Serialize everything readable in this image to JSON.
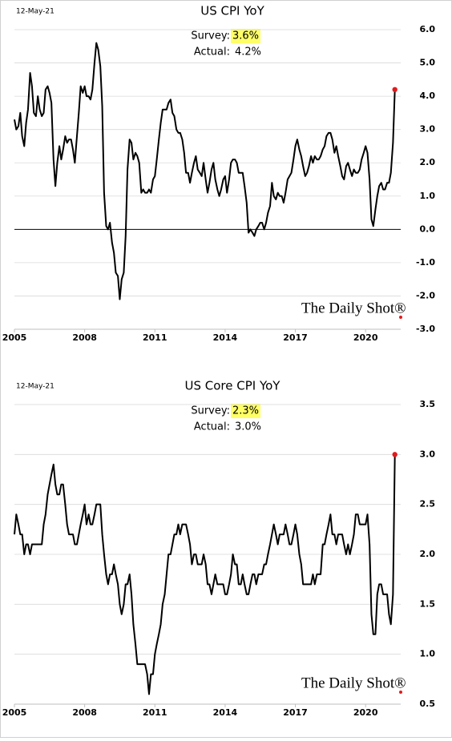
{
  "chart_data": [
    {
      "type": "line",
      "title": "US CPI YoY",
      "date": "12-May-21",
      "annotations": {
        "survey_label": "Survey:",
        "survey": "3.6%",
        "actual_label": "Actual:",
        "actual": "4.2%"
      },
      "watermark": "The Daily Shot®",
      "xlim": [
        2005,
        2021.5
      ],
      "xticks": [
        2005,
        2008,
        2011,
        2014,
        2017,
        2020
      ],
      "ylim": [
        -3,
        6
      ],
      "yticks": [
        {
          "value": 6,
          "label": "6.0"
        },
        {
          "value": 5,
          "label": "5.0"
        },
        {
          "value": 4,
          "label": "4.0"
        },
        {
          "value": 3,
          "label": "3.0"
        },
        {
          "value": 2,
          "label": "2.0"
        },
        {
          "value": 1,
          "label": "1.0"
        },
        {
          "value": 0,
          "label": "0.0"
        },
        {
          "value": -1,
          "label": "-1.0"
        },
        {
          "value": -2,
          "label": "-2.0"
        },
        {
          "value": -3,
          "label": "-3.0"
        }
      ],
      "grid": true,
      "zero_line": true,
      "color": "#000000",
      "end_marker_color": "#e31a1c",
      "highlight_color": "#ffff66",
      "x": [
        2005.0,
        2005.08,
        2005.17,
        2005.25,
        2005.33,
        2005.42,
        2005.5,
        2005.58,
        2005.67,
        2005.75,
        2005.83,
        2005.92,
        2006.0,
        2006.08,
        2006.17,
        2006.25,
        2006.33,
        2006.42,
        2006.5,
        2006.58,
        2006.67,
        2006.75,
        2006.83,
        2006.92,
        2007.0,
        2007.08,
        2007.17,
        2007.25,
        2007.33,
        2007.42,
        2007.5,
        2007.58,
        2007.67,
        2007.75,
        2007.83,
        2007.92,
        2008.0,
        2008.08,
        2008.17,
        2008.25,
        2008.33,
        2008.42,
        2008.5,
        2008.58,
        2008.67,
        2008.75,
        2008.83,
        2008.92,
        2009.0,
        2009.08,
        2009.17,
        2009.25,
        2009.33,
        2009.42,
        2009.5,
        2009.58,
        2009.67,
        2009.75,
        2009.83,
        2009.92,
        2010.0,
        2010.08,
        2010.17,
        2010.25,
        2010.33,
        2010.42,
        2010.5,
        2010.58,
        2010.67,
        2010.75,
        2010.83,
        2010.92,
        2011.0,
        2011.08,
        2011.17,
        2011.25,
        2011.33,
        2011.42,
        2011.5,
        2011.58,
        2011.67,
        2011.75,
        2011.83,
        2011.92,
        2012.0,
        2012.08,
        2012.17,
        2012.25,
        2012.33,
        2012.42,
        2012.5,
        2012.58,
        2012.67,
        2012.75,
        2012.83,
        2012.92,
        2013.0,
        2013.08,
        2013.17,
        2013.25,
        2013.33,
        2013.42,
        2013.5,
        2013.58,
        2013.67,
        2013.75,
        2013.83,
        2013.92,
        2014.0,
        2014.08,
        2014.17,
        2014.25,
        2014.33,
        2014.42,
        2014.5,
        2014.58,
        2014.67,
        2014.75,
        2014.83,
        2014.92,
        2015.0,
        2015.08,
        2015.17,
        2015.25,
        2015.33,
        2015.42,
        2015.5,
        2015.58,
        2015.67,
        2015.75,
        2015.83,
        2015.92,
        2016.0,
        2016.08,
        2016.17,
        2016.25,
        2016.33,
        2016.42,
        2016.5,
        2016.58,
        2016.67,
        2016.75,
        2016.83,
        2016.92,
        2017.0,
        2017.08,
        2017.17,
        2017.25,
        2017.33,
        2017.42,
        2017.5,
        2017.58,
        2017.67,
        2017.75,
        2017.83,
        2017.92,
        2018.0,
        2018.08,
        2018.17,
        2018.25,
        2018.33,
        2018.42,
        2018.5,
        2018.58,
        2018.67,
        2018.75,
        2018.83,
        2018.92,
        2019.0,
        2019.08,
        2019.17,
        2019.25,
        2019.33,
        2019.42,
        2019.5,
        2019.58,
        2019.67,
        2019.75,
        2019.83,
        2019.92,
        2020.0,
        2020.08,
        2020.17,
        2020.25,
        2020.33,
        2020.42,
        2020.5,
        2020.58,
        2020.67,
        2020.75,
        2020.83,
        2020.92,
        2021.0,
        2021.08,
        2021.17,
        2021.25
      ],
      "values": [
        3.3,
        3.0,
        3.1,
        3.5,
        2.8,
        2.5,
        3.2,
        3.6,
        4.7,
        4.3,
        3.5,
        3.4,
        4.0,
        3.6,
        3.4,
        3.5,
        4.2,
        4.3,
        4.1,
        3.8,
        2.1,
        1.3,
        2.0,
        2.5,
        2.1,
        2.4,
        2.8,
        2.6,
        2.7,
        2.7,
        2.4,
        2.0,
        2.8,
        3.5,
        4.3,
        4.1,
        4.3,
        4.0,
        4.0,
        3.9,
        4.2,
        5.0,
        5.6,
        5.4,
        4.9,
        3.7,
        1.1,
        0.1,
        0.0,
        0.2,
        -0.4,
        -0.7,
        -1.3,
        -1.4,
        -2.1,
        -1.5,
        -1.3,
        -0.2,
        1.8,
        2.7,
        2.6,
        2.1,
        2.3,
        2.2,
        2.0,
        1.1,
        1.2,
        1.1,
        1.1,
        1.2,
        1.1,
        1.5,
        1.6,
        2.1,
        2.7,
        3.2,
        3.6,
        3.6,
        3.6,
        3.8,
        3.9,
        3.5,
        3.4,
        3.0,
        2.9,
        2.9,
        2.7,
        2.3,
        1.7,
        1.7,
        1.4,
        1.7,
        2.0,
        2.2,
        1.8,
        1.7,
        1.6,
        2.0,
        1.5,
        1.1,
        1.4,
        1.8,
        2.0,
        1.5,
        1.2,
        1.0,
        1.2,
        1.5,
        1.6,
        1.1,
        1.5,
        2.0,
        2.1,
        2.1,
        2.0,
        1.7,
        1.7,
        1.7,
        1.3,
        0.8,
        -0.1,
        0.0,
        -0.1,
        -0.2,
        0.0,
        0.1,
        0.2,
        0.2,
        0.0,
        0.2,
        0.5,
        0.7,
        1.4,
        1.0,
        0.9,
        1.1,
        1.0,
        1.0,
        0.8,
        1.1,
        1.5,
        1.6,
        1.7,
        2.1,
        2.5,
        2.7,
        2.4,
        2.2,
        1.9,
        1.6,
        1.7,
        1.9,
        2.2,
        2.0,
        2.2,
        2.1,
        2.1,
        2.2,
        2.4,
        2.5,
        2.8,
        2.9,
        2.9,
        2.7,
        2.3,
        2.5,
        2.2,
        1.9,
        1.6,
        1.5,
        1.9,
        2.0,
        1.8,
        1.6,
        1.8,
        1.7,
        1.7,
        1.8,
        2.1,
        2.3,
        2.5,
        2.3,
        1.5,
        0.3,
        0.1,
        0.6,
        1.0,
        1.3,
        1.4,
        1.2,
        1.2,
        1.4,
        1.4,
        1.7,
        2.6,
        4.2
      ]
    },
    {
      "type": "line",
      "title": "US Core CPI YoY",
      "date": "12-May-21",
      "annotations": {
        "survey_label": "Survey:",
        "survey": "2.3%",
        "actual_label": "Actual:",
        "actual": "3.0%"
      },
      "watermark": "The Daily Shot®",
      "xlim": [
        2005,
        2021.5
      ],
      "xticks": [
        2005,
        2008,
        2011,
        2014,
        2017,
        2020
      ],
      "ylim": [
        0.5,
        3.5
      ],
      "yticks": [
        3.5,
        {
          "value": 3,
          "label": "3.0"
        },
        2.5,
        {
          "value": 2,
          "label": "2.0"
        },
        1.5,
        {
          "value": 1,
          "label": "1.0"
        },
        0.5
      ],
      "grid": true,
      "zero_line": false,
      "color": "#000000",
      "end_marker_color": "#e31a1c",
      "highlight_color": "#ffff66",
      "x": [
        2005.0,
        2005.08,
        2005.17,
        2005.25,
        2005.33,
        2005.42,
        2005.5,
        2005.58,
        2005.67,
        2005.75,
        2005.83,
        2005.92,
        2006.0,
        2006.08,
        2006.17,
        2006.25,
        2006.33,
        2006.42,
        2006.5,
        2006.58,
        2006.67,
        2006.75,
        2006.83,
        2006.92,
        2007.0,
        2007.08,
        2007.17,
        2007.25,
        2007.33,
        2007.42,
        2007.5,
        2007.58,
        2007.67,
        2007.75,
        2007.83,
        2007.92,
        2008.0,
        2008.08,
        2008.17,
        2008.25,
        2008.33,
        2008.42,
        2008.5,
        2008.58,
        2008.67,
        2008.75,
        2008.83,
        2008.92,
        2009.0,
        2009.08,
        2009.17,
        2009.25,
        2009.33,
        2009.42,
        2009.5,
        2009.58,
        2009.67,
        2009.75,
        2009.83,
        2009.92,
        2010.0,
        2010.08,
        2010.17,
        2010.25,
        2010.33,
        2010.42,
        2010.5,
        2010.58,
        2010.67,
        2010.75,
        2010.83,
        2010.92,
        2011.0,
        2011.08,
        2011.17,
        2011.25,
        2011.33,
        2011.42,
        2011.5,
        2011.58,
        2011.67,
        2011.75,
        2011.83,
        2011.92,
        2012.0,
        2012.08,
        2012.17,
        2012.25,
        2012.33,
        2012.42,
        2012.5,
        2012.58,
        2012.67,
        2012.75,
        2012.83,
        2012.92,
        2013.0,
        2013.08,
        2013.17,
        2013.25,
        2013.33,
        2013.42,
        2013.5,
        2013.58,
        2013.67,
        2013.75,
        2013.83,
        2013.92,
        2014.0,
        2014.08,
        2014.17,
        2014.25,
        2014.33,
        2014.42,
        2014.5,
        2014.58,
        2014.67,
        2014.75,
        2014.83,
        2014.92,
        2015.0,
        2015.08,
        2015.17,
        2015.25,
        2015.33,
        2015.42,
        2015.5,
        2015.58,
        2015.67,
        2015.75,
        2015.83,
        2015.92,
        2016.0,
        2016.08,
        2016.17,
        2016.25,
        2016.33,
        2016.42,
        2016.5,
        2016.58,
        2016.67,
        2016.75,
        2016.83,
        2016.92,
        2017.0,
        2017.08,
        2017.17,
        2017.25,
        2017.33,
        2017.42,
        2017.5,
        2017.58,
        2017.67,
        2017.75,
        2017.83,
        2017.92,
        2018.0,
        2018.08,
        2018.17,
        2018.25,
        2018.33,
        2018.42,
        2018.5,
        2018.58,
        2018.67,
        2018.75,
        2018.83,
        2018.92,
        2019.0,
        2019.08,
        2019.17,
        2019.25,
        2019.33,
        2019.42,
        2019.5,
        2019.58,
        2019.67,
        2019.75,
        2019.83,
        2019.92,
        2020.0,
        2020.08,
        2020.17,
        2020.25,
        2020.33,
        2020.42,
        2020.5,
        2020.58,
        2020.67,
        2020.75,
        2020.83,
        2020.92,
        2021.0,
        2021.08,
        2021.17,
        2021.25
      ],
      "values": [
        2.2,
        2.4,
        2.3,
        2.2,
        2.2,
        2.0,
        2.1,
        2.1,
        2.0,
        2.1,
        2.1,
        2.1,
        2.1,
        2.1,
        2.1,
        2.3,
        2.4,
        2.6,
        2.7,
        2.8,
        2.9,
        2.7,
        2.6,
        2.6,
        2.7,
        2.7,
        2.5,
        2.3,
        2.2,
        2.2,
        2.2,
        2.1,
        2.1,
        2.2,
        2.3,
        2.4,
        2.5,
        2.3,
        2.4,
        2.3,
        2.3,
        2.4,
        2.5,
        2.5,
        2.5,
        2.2,
        2.0,
        1.8,
        1.7,
        1.8,
        1.8,
        1.9,
        1.8,
        1.7,
        1.5,
        1.4,
        1.5,
        1.7,
        1.7,
        1.8,
        1.6,
        1.3,
        1.1,
        0.9,
        0.9,
        0.9,
        0.9,
        0.9,
        0.8,
        0.6,
        0.8,
        0.8,
        1.0,
        1.1,
        1.2,
        1.3,
        1.5,
        1.6,
        1.8,
        2.0,
        2.0,
        2.1,
        2.2,
        2.2,
        2.3,
        2.2,
        2.3,
        2.3,
        2.3,
        2.2,
        2.1,
        1.9,
        2.0,
        2.0,
        1.9,
        1.9,
        1.9,
        2.0,
        1.9,
        1.7,
        1.7,
        1.6,
        1.7,
        1.8,
        1.7,
        1.7,
        1.7,
        1.7,
        1.6,
        1.6,
        1.7,
        1.8,
        2.0,
        1.9,
        1.9,
        1.7,
        1.7,
        1.8,
        1.7,
        1.6,
        1.6,
        1.7,
        1.8,
        1.8,
        1.7,
        1.8,
        1.8,
        1.8,
        1.9,
        1.9,
        2.0,
        2.1,
        2.2,
        2.3,
        2.2,
        2.1,
        2.2,
        2.2,
        2.2,
        2.3,
        2.2,
        2.1,
        2.1,
        2.2,
        2.3,
        2.2,
        2.0,
        1.9,
        1.7,
        1.7,
        1.7,
        1.7,
        1.7,
        1.8,
        1.7,
        1.8,
        1.8,
        1.8,
        2.1,
        2.1,
        2.2,
        2.3,
        2.4,
        2.2,
        2.2,
        2.1,
        2.2,
        2.2,
        2.2,
        2.1,
        2.0,
        2.1,
        2.0,
        2.1,
        2.2,
        2.4,
        2.4,
        2.3,
        2.3,
        2.3,
        2.3,
        2.4,
        2.1,
        1.4,
        1.2,
        1.2,
        1.6,
        1.7,
        1.7,
        1.6,
        1.6,
        1.6,
        1.4,
        1.3,
        1.6,
        3.0
      ]
    }
  ]
}
